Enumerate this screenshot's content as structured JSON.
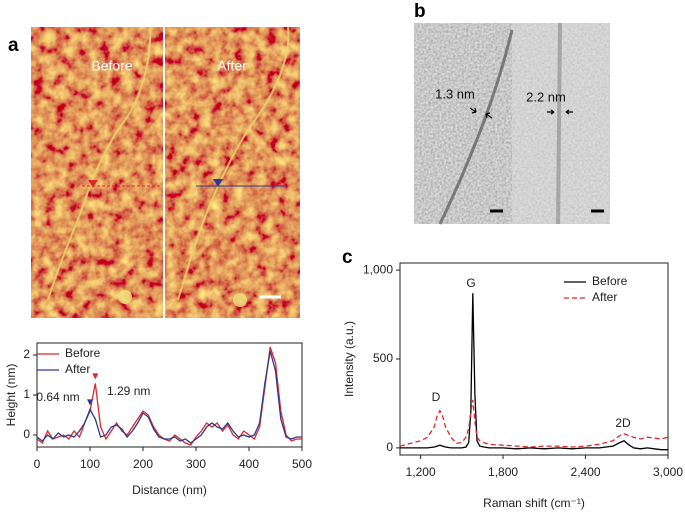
{
  "panel_labels": [
    "a",
    "b",
    "c"
  ],
  "afm_image": {
    "labels": [
      "Before",
      "After"
    ]
  },
  "tem_image": {
    "labels": [
      "1.3 nm",
      "2.2 nm"
    ]
  },
  "chart_data": [
    {
      "type": "line",
      "xlabel": "Distance (nm)",
      "ylabel": "Height (nm)",
      "x": [
        0,
        10,
        20,
        30,
        40,
        50,
        60,
        70,
        80,
        90,
        100,
        110,
        120,
        130,
        140,
        150,
        160,
        170,
        180,
        190,
        200,
        210,
        220,
        230,
        240,
        250,
        260,
        270,
        280,
        290,
        300,
        310,
        320,
        330,
        340,
        350,
        360,
        370,
        380,
        390,
        400,
        410,
        420,
        430,
        440,
        450,
        460,
        470,
        480,
        490,
        500
      ],
      "series": [
        {
          "name": "Before",
          "color": "#e0262b",
          "values": [
            -0.1,
            -0.2,
            0.1,
            -0.1,
            -0.05,
            0.0,
            -0.1,
            0.1,
            -0.05,
            0.3,
            0.6,
            1.29,
            0.2,
            -0.1,
            0.1,
            0.3,
            0.1,
            0.0,
            0.2,
            0.4,
            0.6,
            0.5,
            0.2,
            0.0,
            -0.1,
            -0.15,
            0.0,
            -0.1,
            -0.2,
            -0.25,
            -0.05,
            0.1,
            0.3,
            0.2,
            0.3,
            0.1,
            0.25,
            0.0,
            -0.1,
            0.1,
            0.0,
            -0.1,
            0.2,
            1.2,
            2.2,
            1.8,
            0.6,
            0.0,
            -0.15,
            -0.1,
            -0.1
          ]
        },
        {
          "name": "After",
          "color": "#2b3990",
          "values": [
            -0.05,
            -0.15,
            0.0,
            -0.1,
            0.05,
            -0.05,
            0.0,
            -0.05,
            0.1,
            0.3,
            0.64,
            0.4,
            -0.05,
            0.0,
            0.2,
            0.25,
            0.15,
            -0.05,
            0.1,
            0.3,
            0.55,
            0.45,
            0.15,
            -0.05,
            -0.1,
            -0.1,
            -0.05,
            -0.15,
            -0.1,
            -0.2,
            -0.1,
            0.0,
            0.2,
            0.3,
            0.2,
            0.15,
            0.3,
            0.1,
            -0.05,
            0.0,
            -0.05,
            0.0,
            0.3,
            1.3,
            2.1,
            1.6,
            0.4,
            -0.05,
            -0.1,
            -0.05,
            -0.05
          ]
        }
      ],
      "xlim": [
        0,
        500
      ],
      "xticks": [
        0,
        100,
        200,
        300,
        400,
        500
      ],
      "ylim": [
        -0.3,
        2.3
      ],
      "yticks": [
        0,
        1,
        2
      ],
      "legend": "upper left",
      "annotations": [
        {
          "text": "0.64 nm",
          "color": "#2b3990"
        },
        {
          "text": "1.29 nm",
          "color": "#e0262b"
        }
      ]
    },
    {
      "type": "line",
      "xlabel": "Raman shift (cm⁻¹)",
      "ylabel": "Intensity (a.u.)",
      "x": [
        1050,
        1100,
        1150,
        1200,
        1250,
        1300,
        1320,
        1340,
        1360,
        1380,
        1420,
        1460,
        1500,
        1530,
        1550,
        1565,
        1580,
        1595,
        1610,
        1630,
        1660,
        1700,
        1800,
        1900,
        2000,
        2100,
        2200,
        2300,
        2400,
        2500,
        2600,
        2650,
        2680,
        2710,
        2750,
        2800,
        2850,
        2900,
        2950,
        3000
      ],
      "series": [
        {
          "name": "Before",
          "color": "#000000",
          "dashed": false,
          "values": [
            0,
            0,
            0,
            0,
            0,
            5,
            10,
            15,
            10,
            5,
            0,
            0,
            0,
            5,
            30,
            200,
            870,
            300,
            40,
            10,
            5,
            0,
            0,
            -5,
            0,
            -5,
            0,
            -5,
            0,
            0,
            10,
            30,
            40,
            20,
            0,
            -5,
            0,
            -5,
            -10,
            -10
          ]
        },
        {
          "name": "After",
          "color": "#e0262b",
          "dashed": true,
          "values": [
            10,
            20,
            30,
            40,
            60,
            120,
            180,
            210,
            180,
            120,
            60,
            25,
            30,
            60,
            110,
            200,
            270,
            150,
            60,
            40,
            30,
            20,
            15,
            10,
            5,
            10,
            10,
            5,
            10,
            20,
            40,
            70,
            80,
            70,
            60,
            50,
            60,
            55,
            50,
            60
          ]
        }
      ],
      "xlim": [
        1050,
        3000
      ],
      "xticks": [
        {
          "value": 1200,
          "label": "1,200"
        },
        {
          "value": 1800,
          "label": "1,800"
        },
        {
          "value": 2400,
          "label": "2,400"
        },
        {
          "value": 3000,
          "label": "3,000"
        }
      ],
      "ylim": [
        -40,
        1040
      ],
      "yticks": [
        0,
        500,
        {
          "value": 1000,
          "label": "1,000"
        }
      ],
      "legend": "upper right",
      "annotations": [
        {
          "text": "D",
          "color": "#222222"
        },
        {
          "text": "G",
          "color": "#222222"
        },
        {
          "text": "2D",
          "color": "#222222"
        }
      ]
    }
  ]
}
